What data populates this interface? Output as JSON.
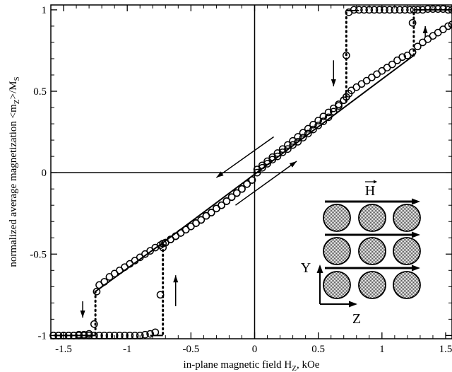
{
  "chart_data": {
    "type": "scatter",
    "xlabel": "in-plane magnetic field H",
    "xlabel_sub": "Z",
    "xlabel_unit": ", kOe",
    "ylabel": "normalized average magnetization <m",
    "ylabel_sub1": "Z",
    "ylabel_mid": ">/M",
    "ylabel_sub2": "S",
    "xlim": [
      -1.6,
      1.55
    ],
    "ylim": [
      -1.02,
      1.03
    ],
    "grid": false,
    "xticks": [
      -1.5,
      -1,
      -0.5,
      0,
      0.5,
      1,
      1.5
    ],
    "xtick_labels": [
      "-1.5",
      "-1",
      "-0.5",
      "0",
      "0.5",
      "1",
      "1.5"
    ],
    "yticks": [
      -1,
      -0.5,
      0,
      0.5,
      1
    ],
    "ytick_labels": [
      "-1",
      "-0.5",
      "0",
      "0.5",
      "1"
    ],
    "series": [
      {
        "marker": "open-circle",
        "x": [
          -1.58,
          -1.54,
          -1.5,
          -1.46,
          -1.42,
          -1.38,
          -1.34,
          -1.3,
          -1.26,
          -1.24,
          -1.22,
          -1.18,
          -1.14,
          -1.1,
          -1.06,
          -1.02,
          -0.98,
          -0.94,
          -0.9,
          -0.86,
          -0.82,
          -0.78,
          -0.74,
          -0.72,
          -0.7,
          -0.66,
          -0.62,
          -0.58,
          -0.54,
          -0.5,
          -0.46,
          -0.42,
          -0.38,
          -0.34,
          -0.3,
          -0.26,
          -0.22,
          -0.18,
          -0.14,
          -0.1,
          -0.06,
          -0.02,
          0.02,
          0.06,
          0.1,
          0.14,
          0.18,
          0.22,
          0.26,
          0.3,
          0.34,
          0.38,
          0.42,
          0.46,
          0.5,
          0.54,
          0.58,
          0.62,
          0.66,
          0.7,
          0.72,
          0.74,
          0.76,
          0.8,
          0.84,
          0.88,
          0.92,
          0.96,
          1.0,
          1.04,
          1.08,
          1.12,
          1.16,
          1.2,
          1.24,
          1.28,
          1.32,
          1.36,
          1.4,
          1.44,
          1.48,
          1.52,
          1.55
        ],
        "y": [
          -1.0,
          -1.0,
          -1.0,
          -1.0,
          -1.0,
          -0.995,
          -0.995,
          -0.99,
          -0.93,
          -0.73,
          -0.69,
          -0.67,
          -0.64,
          -0.62,
          -0.6,
          -0.58,
          -0.56,
          -0.54,
          -0.52,
          -0.5,
          -0.48,
          -0.46,
          -0.445,
          -0.435,
          -0.43,
          -0.41,
          -0.39,
          -0.37,
          -0.35,
          -0.33,
          -0.31,
          -0.29,
          -0.265,
          -0.245,
          -0.22,
          -0.2,
          -0.175,
          -0.15,
          -0.125,
          -0.1,
          -0.07,
          -0.045,
          0.0,
          0.03,
          0.055,
          0.08,
          0.1,
          0.125,
          0.145,
          0.17,
          0.19,
          0.215,
          0.24,
          0.265,
          0.29,
          0.315,
          0.34,
          0.375,
          0.41,
          0.445,
          0.465,
          0.485,
          0.505,
          0.525,
          0.545,
          0.565,
          0.585,
          0.605,
          0.625,
          0.645,
          0.665,
          0.69,
          0.71,
          0.72,
          0.74,
          0.775,
          0.8,
          0.82,
          0.84,
          0.86,
          0.88,
          0.9,
          0.91
        ]
      },
      {
        "marker": "open-circle",
        "x": [
          -1.58,
          -1.54,
          -1.5,
          -1.46,
          -1.42,
          -1.38,
          -1.34,
          -1.3,
          -1.26,
          -1.22,
          -1.18,
          -1.14,
          -1.1,
          -1.06,
          -1.02,
          -0.98,
          -0.94,
          -0.9,
          -0.86,
          -0.82,
          -0.78,
          -0.74,
          -0.72,
          -0.7,
          -0.66,
          -0.62,
          -0.58,
          -0.54,
          -0.5,
          -0.46,
          -0.42,
          -0.38,
          -0.34,
          -0.3,
          -0.26,
          -0.22,
          -0.18,
          -0.14,
          -0.1,
          -0.06,
          -0.02,
          0.02,
          0.06,
          0.1,
          0.14,
          0.18,
          0.22,
          0.26,
          0.3,
          0.34,
          0.38,
          0.42,
          0.46,
          0.5,
          0.54,
          0.58,
          0.62,
          0.66,
          0.7,
          0.72,
          0.74,
          0.78,
          0.82,
          0.86,
          0.9,
          0.94,
          0.98,
          1.02,
          1.06,
          1.1,
          1.14,
          1.18,
          1.22,
          1.24,
          1.25,
          1.28,
          1.32,
          1.36,
          1.4,
          1.44,
          1.48,
          1.52,
          1.55
        ],
        "y": [
          -1.0,
          -1.0,
          -1.0,
          -1.0,
          -1.0,
          -1.0,
          -1.0,
          -1.0,
          -1.0,
          -1.0,
          -1.0,
          -1.0,
          -1.0,
          -1.0,
          -1.0,
          -1.0,
          -1.0,
          -1.0,
          -0.995,
          -0.99,
          -0.98,
          -0.75,
          -0.46,
          -0.43,
          -0.41,
          -0.39,
          -0.37,
          -0.35,
          -0.33,
          -0.31,
          -0.29,
          -0.265,
          -0.245,
          -0.22,
          -0.2,
          -0.175,
          -0.15,
          -0.125,
          -0.1,
          -0.07,
          -0.045,
          0.02,
          0.045,
          0.07,
          0.095,
          0.12,
          0.145,
          0.17,
          0.195,
          0.22,
          0.245,
          0.27,
          0.295,
          0.32,
          0.345,
          0.37,
          0.395,
          0.42,
          0.445,
          0.72,
          0.985,
          1.0,
          1.0,
          1.0,
          1.0,
          1.0,
          1.0,
          1.0,
          1.0,
          1.0,
          1.0,
          1.0,
          1.0,
          0.92,
          1.0,
          1.0,
          1.0,
          1.005,
          1.005,
          1.005,
          1.005,
          1.0,
          1.0
        ]
      }
    ],
    "lines": [
      {
        "style": "solid",
        "x": [
          -1.58,
          -1.25
        ],
        "y": [
          -1.0,
          -1.0
        ]
      },
      {
        "style": "solid",
        "x": [
          -1.25,
          -0.72
        ],
        "y": [
          -0.73,
          -0.43
        ]
      },
      {
        "style": "solid",
        "x": [
          -0.72,
          1.25
        ],
        "y": [
          -0.43,
          0.72
        ]
      },
      {
        "style": "solid",
        "x": [
          1.25,
          1.55
        ],
        "y": [
          1.0,
          1.0
        ]
      },
      {
        "style": "solid",
        "x": [
          -0.82,
          -0.72
        ],
        "y": [
          -1.0,
          -1.0
        ]
      },
      {
        "style": "solid",
        "x": [
          0.72,
          0.82
        ],
        "y": [
          0.995,
          0.995
        ]
      },
      {
        "style": "dotted",
        "x": [
          -1.25,
          -1.25
        ],
        "y": [
          -0.99,
          -0.73
        ]
      },
      {
        "style": "dotted",
        "x": [
          -0.72,
          -0.72
        ],
        "y": [
          -0.99,
          -0.43
        ]
      },
      {
        "style": "dotted",
        "x": [
          0.72,
          0.72
        ],
        "y": [
          0.44,
          0.995
        ]
      },
      {
        "style": "dotted",
        "x": [
          1.25,
          1.25
        ],
        "y": [
          0.72,
          1.0
        ]
      }
    ],
    "annotation_arrows": [
      {
        "x1": 0.15,
        "y1": 0.22,
        "x2": -0.3,
        "y2": -0.03
      },
      {
        "x1": -0.15,
        "y1": -0.2,
        "x2": 0.33,
        "y2": 0.07
      },
      {
        "x1": 0.62,
        "y1": 0.69,
        "x2": 0.62,
        "y2": 0.53
      },
      {
        "x1": -1.35,
        "y1": -0.79,
        "x2": -1.35,
        "y2": -0.89
      },
      {
        "x1": -0.62,
        "y1": -0.82,
        "x2": -0.62,
        "y2": -0.63
      },
      {
        "x1": 1.34,
        "y1": 0.83,
        "x2": 1.34,
        "y2": 0.9
      }
    ],
    "inset": {
      "field_label": "H",
      "axis_y_label": "Y",
      "axis_z_label": "Z",
      "rows": 3,
      "cols": 3,
      "disk_fill": "#8a8a8a"
    }
  }
}
